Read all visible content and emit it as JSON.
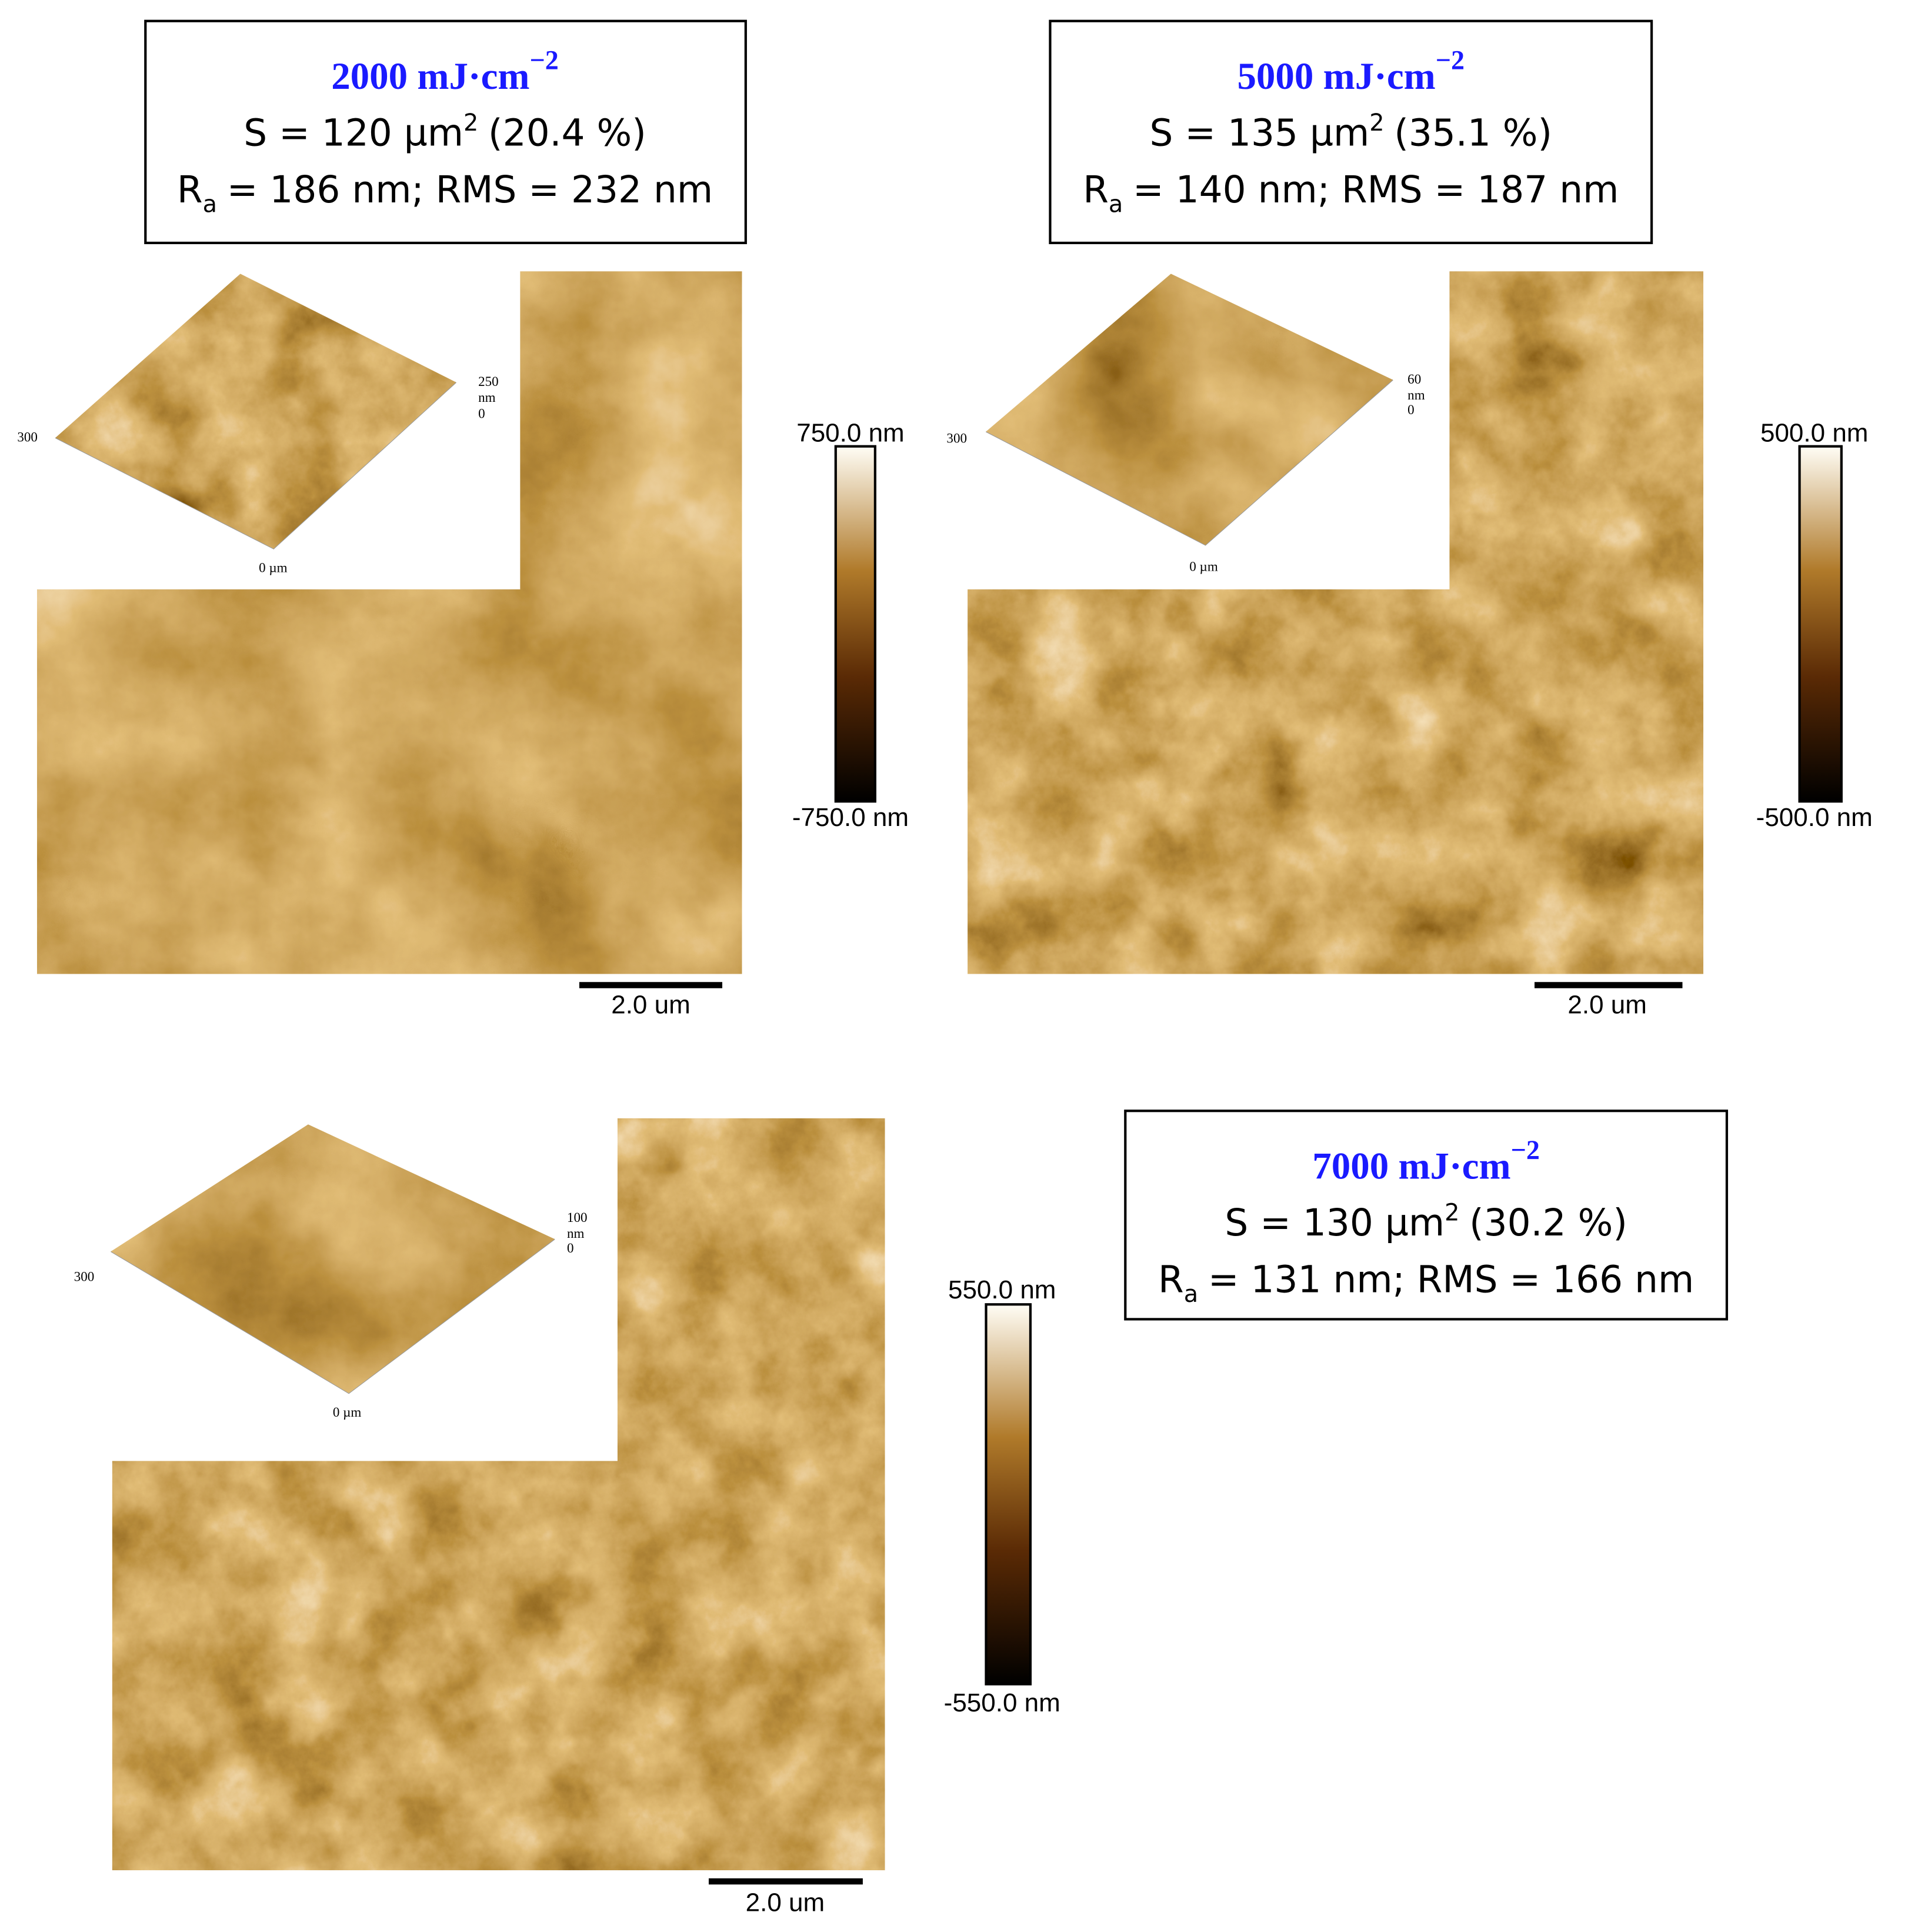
{
  "panels": [
    {
      "title": {
        "text": "2000 mJ·cm",
        "sup": "−2"
      },
      "area": {
        "text": "S = 120 µm",
        "sup": "2",
        "rest": "(20.4 %)"
      },
      "roughness": {
        "text": "R",
        "sub": "a",
        "rest": "= 186 nm; RMS = 232 nm"
      },
      "colorbar": {
        "max": "750.0 nm",
        "min": "-750.0 nm"
      },
      "scale_bar": "2.0 um",
      "inset": {
        "x_label": "300",
        "origin": "0 µm",
        "z_max": "250",
        "z_unit": "nm",
        "z_min": "0"
      }
    },
    {
      "title": {
        "text": "5000 mJ·cm",
        "sup": "−2"
      },
      "area": {
        "text": "S = 135 µm",
        "sup": "2",
        "rest": "(35.1 %)"
      },
      "roughness": {
        "text": "R",
        "sub": "a",
        "rest": "= 140 nm; RMS = 187 nm"
      },
      "colorbar": {
        "max": "500.0 nm",
        "min": "-500.0 nm"
      },
      "scale_bar": "2.0 um",
      "inset": {
        "x_label": "300",
        "origin": "0 µm",
        "z_max": "60",
        "z_unit": "nm",
        "z_min": "0"
      }
    },
    {
      "title": {
        "text": "7000 mJ·cm",
        "sup": "−2"
      },
      "area": {
        "text": "S = 130 µm",
        "sup": "2",
        "rest": "(30.2 %)"
      },
      "roughness": {
        "text": "R",
        "sub": "a",
        "rest": "= 131 nm; RMS = 166 nm"
      },
      "colorbar": {
        "max": "550.0 nm",
        "min": "-550.0 nm"
      },
      "scale_bar": "2.0 um",
      "inset": {
        "x_label": "300",
        "origin": "0 µm",
        "z_max": "100",
        "z_unit": "nm",
        "z_min": "0"
      }
    }
  ]
}
